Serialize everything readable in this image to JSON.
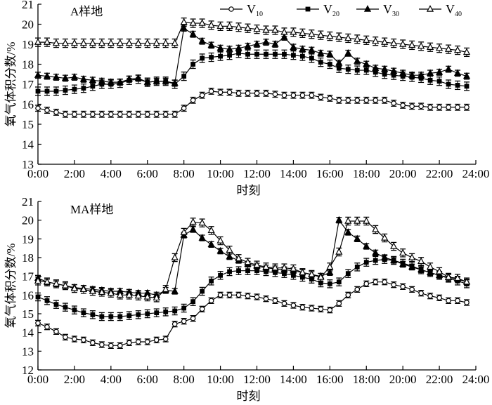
{
  "chart_data": [
    {
      "type": "line",
      "title": "A样地",
      "xlabel": "时刻",
      "ylabel": "氧气体积分数/%",
      "xlim": [
        0,
        24
      ],
      "ylim": [
        13,
        21
      ],
      "x_tick_labels": [
        "0:00",
        "2:00",
        "4:00",
        "6:00",
        "8:00",
        "10:00",
        "12:00",
        "14:00",
        "16:00",
        "18:00",
        "20:00",
        "22:00",
        "24:00"
      ],
      "y_tick_labels": [
        "13",
        "14",
        "15",
        "16",
        "17",
        "18",
        "19",
        "20",
        "21"
      ],
      "legend_position": "top-right",
      "error_bar_approx": 0.15,
      "x_step_hours": 0.5,
      "series": [
        {
          "name": "V10",
          "label_main": "V",
          "label_sub": "10",
          "marker": "open-circle",
          "values": [
            15.8,
            15.7,
            15.6,
            15.5,
            15.5,
            15.5,
            15.5,
            15.5,
            15.5,
            15.5,
            15.5,
            15.5,
            15.5,
            15.5,
            15.5,
            15.5,
            15.8,
            16.2,
            16.45,
            16.65,
            16.6,
            16.6,
            16.55,
            16.55,
            16.55,
            16.55,
            16.5,
            16.45,
            16.45,
            16.45,
            16.45,
            16.35,
            16.3,
            16.2,
            16.2,
            16.2,
            16.2,
            16.2,
            16.2,
            16.05,
            15.95,
            15.9,
            15.9,
            15.85,
            15.85,
            15.85,
            15.85,
            15.85
          ]
        },
        {
          "name": "V20",
          "label_main": "V",
          "label_sub": "20",
          "marker": "filled-square",
          "values": [
            16.65,
            16.65,
            16.65,
            16.7,
            16.75,
            16.8,
            16.9,
            17.0,
            17.0,
            17.05,
            17.2,
            17.25,
            17.1,
            17.15,
            17.15,
            17.0,
            17.4,
            18.0,
            18.3,
            18.35,
            18.4,
            18.45,
            18.55,
            18.5,
            18.5,
            18.5,
            18.5,
            18.5,
            18.45,
            18.4,
            18.3,
            18.1,
            18.0,
            17.8,
            17.75,
            17.7,
            17.7,
            17.6,
            17.5,
            17.45,
            17.4,
            17.35,
            17.3,
            17.2,
            17.15,
            17.0,
            16.95,
            16.9
          ]
        },
        {
          "name": "V30",
          "label_main": "V",
          "label_sub": "30",
          "marker": "filled-triangle",
          "values": [
            17.45,
            17.4,
            17.35,
            17.3,
            17.35,
            17.25,
            17.2,
            17.15,
            17.1,
            17.1,
            17.25,
            17.3,
            17.1,
            17.15,
            17.15,
            17.05,
            19.8,
            19.5,
            19.15,
            18.95,
            18.8,
            18.75,
            18.8,
            18.9,
            19.0,
            19.1,
            19.0,
            19.35,
            18.85,
            18.75,
            18.7,
            18.55,
            18.5,
            18.05,
            18.55,
            18.15,
            18.0,
            17.8,
            17.75,
            17.65,
            17.55,
            17.45,
            17.45,
            17.55,
            17.6,
            17.75,
            17.55,
            17.4
          ]
        },
        {
          "name": "V40",
          "label_main": "V",
          "label_sub": "40",
          "marker": "open-triangle",
          "values": [
            19.1,
            19.1,
            19.05,
            19.05,
            19.05,
            19.05,
            19.05,
            19.05,
            19.05,
            19.05,
            19.05,
            19.05,
            19.05,
            19.05,
            19.05,
            19.05,
            20.1,
            20.05,
            20.05,
            19.95,
            19.9,
            19.9,
            19.85,
            19.8,
            19.75,
            19.7,
            19.7,
            19.6,
            19.6,
            19.55,
            19.5,
            19.45,
            19.4,
            19.35,
            19.3,
            19.25,
            19.2,
            19.15,
            19.1,
            19.05,
            19.0,
            18.95,
            18.9,
            18.85,
            18.8,
            18.75,
            18.7,
            18.6
          ]
        }
      ]
    },
    {
      "type": "line",
      "title": "MA样地",
      "xlabel": "时刻",
      "ylabel": "氧气体积分数/%",
      "xlim": [
        0,
        24
      ],
      "ylim": [
        12,
        21
      ],
      "x_tick_labels": [
        "0:00",
        "2:00",
        "4:00",
        "6:00",
        "8:00",
        "10:00",
        "12:00",
        "14:00",
        "16:00",
        "18:00",
        "20:00",
        "22:00",
        "24:00"
      ],
      "y_tick_labels": [
        "12",
        "13",
        "14",
        "15",
        "16",
        "17",
        "18",
        "19",
        "20",
        "21"
      ],
      "error_bar_approx": 0.15,
      "x_step_hours": 0.5,
      "series": [
        {
          "name": "V10",
          "marker": "open-circle",
          "values": [
            14.5,
            14.3,
            14.05,
            13.75,
            13.65,
            13.6,
            13.45,
            13.35,
            13.3,
            13.3,
            13.45,
            13.5,
            13.5,
            13.6,
            13.65,
            14.45,
            14.6,
            14.75,
            15.25,
            15.7,
            16.0,
            16.0,
            16.0,
            15.95,
            15.9,
            15.8,
            15.7,
            15.55,
            15.45,
            15.35,
            15.3,
            15.25,
            15.2,
            15.55,
            16.0,
            16.3,
            16.6,
            16.7,
            16.7,
            16.55,
            16.45,
            16.3,
            16.1,
            15.95,
            15.85,
            15.7,
            15.7,
            15.6
          ]
        },
        {
          "name": "V20",
          "marker": "filled-square",
          "values": [
            15.9,
            15.7,
            15.5,
            15.35,
            15.2,
            15.05,
            14.95,
            14.85,
            14.85,
            14.85,
            14.9,
            14.95,
            15.0,
            15.05,
            15.1,
            15.15,
            15.3,
            15.65,
            16.2,
            16.75,
            17.05,
            17.25,
            17.3,
            17.3,
            17.3,
            17.25,
            17.2,
            17.15,
            17.05,
            16.95,
            16.85,
            16.65,
            16.6,
            16.7,
            17.15,
            17.5,
            17.75,
            17.85,
            17.9,
            17.85,
            17.7,
            17.55,
            17.35,
            17.2,
            17.05,
            16.9,
            16.75,
            16.6
          ]
        },
        {
          "name": "V30",
          "marker": "filled-triangle",
          "values": [
            16.9,
            16.7,
            16.6,
            16.5,
            16.4,
            16.35,
            16.3,
            16.25,
            16.2,
            16.2,
            16.15,
            16.1,
            16.1,
            16.0,
            16.25,
            16.2,
            19.2,
            19.5,
            19.05,
            18.7,
            18.35,
            18.05,
            17.85,
            17.65,
            17.55,
            17.45,
            17.4,
            17.35,
            17.3,
            17.2,
            17.1,
            17.0,
            17.2,
            20.0,
            19.35,
            19.0,
            18.6,
            18.25,
            18.0,
            17.85,
            17.65,
            17.5,
            17.35,
            17.2,
            17.05,
            16.95,
            16.85,
            16.7
          ]
        },
        {
          "name": "V40",
          "marker": "open-triangle",
          "values": [
            16.75,
            16.7,
            16.6,
            16.5,
            16.35,
            16.3,
            16.2,
            16.15,
            16.1,
            16.0,
            16.0,
            15.95,
            15.9,
            15.85,
            16.3,
            18.0,
            19.35,
            19.9,
            19.85,
            19.45,
            18.9,
            18.4,
            17.95,
            17.75,
            17.6,
            17.5,
            17.45,
            17.45,
            17.4,
            17.2,
            17.1,
            16.95,
            17.5,
            18.3,
            19.95,
            19.95,
            19.95,
            19.5,
            19.05,
            18.6,
            18.25,
            18.0,
            17.8,
            17.5,
            17.25,
            16.95,
            16.9,
            16.7
          ]
        }
      ]
    }
  ]
}
